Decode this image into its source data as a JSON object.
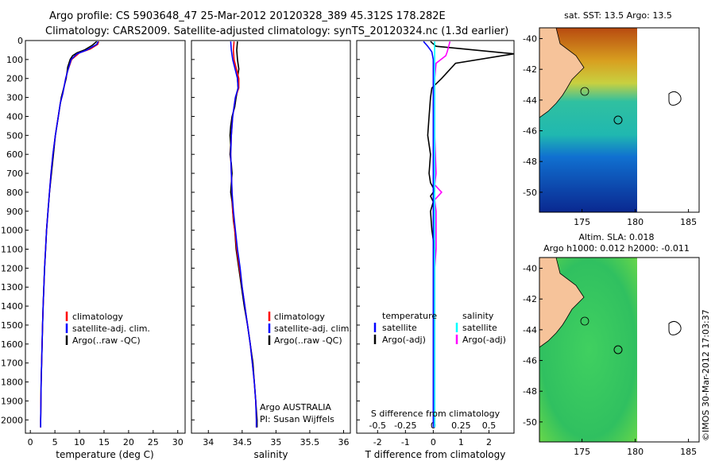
{
  "header": {
    "line1": "Argo profile: CS 5903648_47 25-Mar-2012 20120328_389 45.312S 178.282E",
    "line2": "Climatology: CARS2009. Satellite-adjusted climatology: synTS_20120324.nc (1.3d earlier)"
  },
  "stamp": "©IMOS 30-Mar-2012 17:03:37",
  "colors": {
    "red": "#ff0000",
    "blue": "#0000ff",
    "black": "#000000",
    "cyan": "#00ffff",
    "magenta": "#ff00ff"
  },
  "chart_data": [
    {
      "type": "line",
      "xlabel": "temperature (deg C)",
      "xlim": [
        -1,
        31.5
      ],
      "ylim": [
        2070,
        0
      ],
      "xticks": [
        0,
        5,
        10,
        15,
        20,
        25,
        30
      ],
      "yticks": [
        0,
        100,
        200,
        300,
        400,
        500,
        600,
        700,
        800,
        900,
        1000,
        1100,
        1200,
        1300,
        1400,
        1500,
        1600,
        1700,
        1800,
        1900,
        2000
      ],
      "legend": [
        "climatology",
        "satellite-adj. clim.",
        "Argo(..raw -QC)"
      ],
      "series": [
        {
          "color": "black",
          "points": [
            [
              13.5,
              5
            ],
            [
              12.6,
              25
            ],
            [
              11,
              50
            ],
            [
              9.5,
              65
            ],
            [
              8.6,
              80
            ],
            [
              8.1,
              100
            ],
            [
              7.6,
              140
            ],
            [
              7.3,
              200
            ],
            [
              6.8,
              250
            ],
            [
              6.3,
              300
            ],
            [
              5.7,
              400
            ],
            [
              5.1,
              500
            ],
            [
              4.7,
              600
            ],
            [
              4.3,
              700
            ],
            [
              3.9,
              800
            ],
            [
              3.6,
              900
            ],
            [
              3.3,
              1000
            ],
            [
              3.1,
              1100
            ],
            [
              2.9,
              1200
            ],
            [
              2.75,
              1300
            ],
            [
              2.6,
              1400
            ],
            [
              2.5,
              1500
            ],
            [
              2.4,
              1600
            ],
            [
              2.3,
              1700
            ],
            [
              2.2,
              1800
            ],
            [
              2.15,
              1900
            ],
            [
              2.1,
              2000
            ],
            [
              2.1,
              2040
            ]
          ]
        },
        {
          "color": "red",
          "points": [
            [
              13.9,
              5
            ],
            [
              13.7,
              20
            ],
            [
              12.2,
              45
            ],
            [
              10,
              65
            ],
            [
              8.4,
              100
            ],
            [
              7.6,
              160
            ],
            [
              7.2,
              200
            ],
            [
              6.6,
              280
            ],
            [
              6.1,
              330
            ],
            [
              5.7,
              400
            ],
            [
              5.1,
              500
            ],
            [
              4.6,
              600
            ],
            [
              4.2,
              700
            ],
            [
              3.9,
              800
            ],
            [
              3.6,
              900
            ],
            [
              3.3,
              1000
            ],
            [
              3.1,
              1100
            ],
            [
              2.9,
              1200
            ],
            [
              2.75,
              1300
            ],
            [
              2.6,
              1400
            ],
            [
              2.5,
              1500
            ],
            [
              2.4,
              1600
            ],
            [
              2.3,
              1700
            ],
            [
              2.2,
              1800
            ],
            [
              2.15,
              1900
            ],
            [
              2.1,
              2000
            ],
            [
              2.1,
              2040
            ]
          ]
        },
        {
          "color": "blue",
          "points": [
            [
              13.8,
              5
            ],
            [
              13.5,
              20
            ],
            [
              11.5,
              50
            ],
            [
              9.5,
              70
            ],
            [
              8.3,
              100
            ],
            [
              7.6,
              160
            ],
            [
              7.2,
              200
            ],
            [
              6.6,
              280
            ],
            [
              6.1,
              330
            ],
            [
              5.7,
              400
            ],
            [
              5.1,
              500
            ],
            [
              4.6,
              600
            ],
            [
              4.2,
              700
            ],
            [
              3.9,
              800
            ],
            [
              3.6,
              900
            ],
            [
              3.3,
              1000
            ],
            [
              3.1,
              1100
            ],
            [
              2.9,
              1200
            ],
            [
              2.75,
              1300
            ],
            [
              2.6,
              1400
            ],
            [
              2.5,
              1500
            ],
            [
              2.4,
              1600
            ],
            [
              2.3,
              1700
            ],
            [
              2.2,
              1800
            ],
            [
              2.15,
              1900
            ],
            [
              2.1,
              2000
            ],
            [
              2.1,
              2040
            ]
          ]
        }
      ]
    },
    {
      "type": "line",
      "xlabel": "salinity",
      "xlim": [
        33.75,
        36.1
      ],
      "ylim": [
        2070,
        0
      ],
      "xticks": [
        34,
        34.5,
        35,
        35.5,
        36
      ],
      "legend": [
        "climatology",
        "satellite-adj. clim.",
        "Argo(..raw -QC)"
      ],
      "annotation": [
        "Argo AUSTRALIA",
        "PI: Susan Wijffels"
      ],
      "series": [
        {
          "color": "black",
          "points": [
            [
              34.43,
              5
            ],
            [
              34.42,
              50
            ],
            [
              34.43,
              100
            ],
            [
              34.45,
              150
            ],
            [
              34.43,
              200
            ],
            [
              34.44,
              250
            ],
            [
              34.41,
              300
            ],
            [
              34.39,
              350
            ],
            [
              34.35,
              400
            ],
            [
              34.33,
              450
            ],
            [
              34.32,
              500
            ],
            [
              34.33,
              550
            ],
            [
              34.32,
              600
            ],
            [
              34.34,
              650
            ],
            [
              34.35,
              700
            ],
            [
              34.34,
              750
            ],
            [
              34.33,
              800
            ],
            [
              34.35,
              850
            ],
            [
              34.36,
              900
            ],
            [
              34.37,
              950
            ],
            [
              34.39,
              1000
            ],
            [
              34.41,
              1100
            ],
            [
              34.45,
              1200
            ],
            [
              34.49,
              1300
            ],
            [
              34.53,
              1400
            ],
            [
              34.58,
              1500
            ],
            [
              34.62,
              1600
            ],
            [
              34.66,
              1700
            ],
            [
              34.68,
              1800
            ],
            [
              34.7,
              1900
            ],
            [
              34.72,
              2000
            ],
            [
              34.72,
              2040
            ]
          ]
        },
        {
          "color": "red",
          "points": [
            [
              34.38,
              5
            ],
            [
              34.37,
              50
            ],
            [
              34.38,
              100
            ],
            [
              34.45,
              200
            ],
            [
              34.45,
              250
            ],
            [
              34.4,
              300
            ],
            [
              34.38,
              350
            ],
            [
              34.36,
              400
            ],
            [
              34.34,
              500
            ],
            [
              34.33,
              600
            ],
            [
              34.34,
              700
            ],
            [
              34.35,
              800
            ],
            [
              34.36,
              900
            ],
            [
              34.39,
              1000
            ],
            [
              34.42,
              1100
            ],
            [
              34.46,
              1200
            ],
            [
              34.5,
              1300
            ],
            [
              34.54,
              1400
            ],
            [
              34.58,
              1500
            ],
            [
              34.62,
              1600
            ],
            [
              34.65,
              1700
            ],
            [
              34.68,
              1800
            ],
            [
              34.7,
              1900
            ],
            [
              34.71,
              2000
            ],
            [
              34.71,
              2040
            ]
          ]
        },
        {
          "color": "blue",
          "points": [
            [
              34.33,
              5
            ],
            [
              34.34,
              50
            ],
            [
              34.36,
              100
            ],
            [
              34.43,
              200
            ],
            [
              34.44,
              250
            ],
            [
              34.4,
              300
            ],
            [
              34.38,
              350
            ],
            [
              34.36,
              400
            ],
            [
              34.34,
              500
            ],
            [
              34.33,
              600
            ],
            [
              34.34,
              700
            ],
            [
              34.35,
              800
            ],
            [
              34.37,
              900
            ],
            [
              34.4,
              1000
            ],
            [
              34.43,
              1100
            ],
            [
              34.47,
              1200
            ],
            [
              34.5,
              1300
            ],
            [
              34.54,
              1400
            ],
            [
              34.58,
              1500
            ],
            [
              34.62,
              1600
            ],
            [
              34.65,
              1700
            ],
            [
              34.68,
              1800
            ],
            [
              34.7,
              1900
            ],
            [
              34.71,
              2000
            ],
            [
              34.71,
              2040
            ]
          ]
        }
      ]
    },
    {
      "type": "line",
      "xlabel": "T difference from climatology",
      "xlabel_top": "S difference from climatology",
      "xlim": [
        -2.75,
        2.9
      ],
      "ylim": [
        2070,
        0
      ],
      "xticks": [
        -2,
        -1,
        0,
        1,
        2
      ],
      "xticks_top": [
        -0.5,
        -0.25,
        0,
        0.25,
        0.5
      ],
      "legend_left": {
        "title": "temperature",
        "items": [
          "satellite",
          "Argo(-adj)"
        ]
      },
      "legend_right": {
        "title": "salinity",
        "items": [
          "satellite",
          "Argo(-adj)"
        ]
      },
      "series": [
        {
          "color": "black",
          "points": [
            [
              -0.1,
              5
            ],
            [
              0.1,
              30
            ],
            [
              2.9,
              70
            ],
            [
              0.8,
              120
            ],
            [
              0.3,
              200
            ],
            [
              -0.05,
              250
            ],
            [
              -0.1,
              300
            ],
            [
              -0.15,
              400
            ],
            [
              -0.2,
              500
            ],
            [
              -0.1,
              600
            ],
            [
              -0.15,
              700
            ],
            [
              -0.1,
              750
            ],
            [
              0.05,
              790
            ],
            [
              -0.1,
              820
            ],
            [
              0,
              850
            ],
            [
              -0.1,
              900
            ],
            [
              -0.05,
              1000
            ],
            [
              0.05,
              1100
            ],
            [
              0.05,
              1200
            ],
            [
              0.05,
              1300
            ],
            [
              0.05,
              1400
            ],
            [
              0.05,
              1500
            ],
            [
              0.05,
              1600
            ],
            [
              0.05,
              1700
            ],
            [
              0.05,
              1800
            ],
            [
              0.05,
              1900
            ],
            [
              0.05,
              2000
            ],
            [
              0.05,
              2040
            ]
          ]
        },
        {
          "color": "blue",
          "points": [
            [
              -0.35,
              5
            ],
            [
              -0.2,
              30
            ],
            [
              -0.05,
              60
            ],
            [
              0,
              100
            ],
            [
              0,
              2040
            ]
          ]
        },
        {
          "color": "magenta",
          "points": [
            [
              0.6,
              5
            ],
            [
              0.5,
              60
            ],
            [
              0.45,
              80
            ],
            [
              0.1,
              120
            ],
            [
              0.05,
              200
            ],
            [
              0.05,
              500
            ],
            [
              0.1,
              700
            ],
            [
              0.05,
              760
            ],
            [
              0.3,
              800
            ],
            [
              0.05,
              840
            ],
            [
              0.1,
              900
            ],
            [
              0.1,
              1000
            ],
            [
              0.1,
              1100
            ],
            [
              0.05,
              1200
            ],
            [
              0.05,
              1400
            ],
            [
              0.05,
              1600
            ],
            [
              0.05,
              2040
            ]
          ]
        },
        {
          "color": "cyan",
          "points": [
            [
              0.05,
              5
            ],
            [
              0.05,
              2040
            ]
          ]
        }
      ]
    }
  ],
  "maps": [
    {
      "title_lines": [
        "sat. SST: 13.5 Argo: 13.5"
      ],
      "xticks": [
        175,
        180,
        185
      ],
      "yticks": [
        -40,
        -42,
        -44,
        -46,
        -48,
        -50
      ]
    },
    {
      "title_lines": [
        "Altim. SLA: 0.018",
        "Argo h1000: 0.012 h2000: -0.011"
      ],
      "xticks": [
        175,
        180,
        185
      ],
      "yticks": [
        -40,
        -42,
        -44,
        -46,
        -48,
        -50
      ]
    }
  ]
}
